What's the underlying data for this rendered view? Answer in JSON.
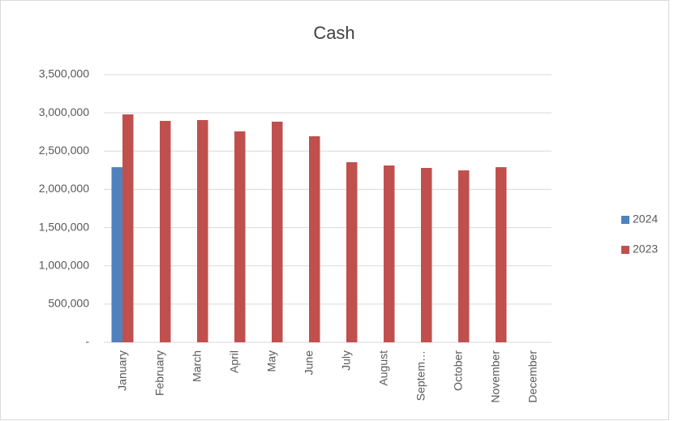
{
  "chart_data": {
    "type": "bar",
    "title": "Cash",
    "categories": [
      "January",
      "February",
      "March",
      "April",
      "May",
      "June",
      "July",
      "August",
      "Septem…",
      "October",
      "November",
      "December"
    ],
    "series": [
      {
        "name": "2024",
        "color": "#4f81bd",
        "values": [
          2290000,
          null,
          null,
          null,
          null,
          null,
          null,
          null,
          null,
          null,
          null,
          null
        ]
      },
      {
        "name": "2023",
        "color": "#c0504d",
        "values": [
          2980000,
          2895000,
          2906000,
          2758000,
          2885000,
          2694000,
          2355000,
          2312000,
          2280000,
          2248000,
          2290000,
          null
        ]
      }
    ],
    "ylim": [
      0,
      3500000
    ],
    "yticks": [
      {
        "value": 0,
        "label": "-"
      },
      {
        "value": 500000,
        "label": "500,000"
      },
      {
        "value": 1000000,
        "label": "1,000,000"
      },
      {
        "value": 1500000,
        "label": "1,500,000"
      },
      {
        "value": 2000000,
        "label": "2,000,000"
      },
      {
        "value": 2500000,
        "label": "2,500,000"
      },
      {
        "value": 3000000,
        "label": "3,000,000"
      },
      {
        "value": 3500000,
        "label": "3,500,000"
      }
    ],
    "grid": true,
    "legend": "right"
  }
}
